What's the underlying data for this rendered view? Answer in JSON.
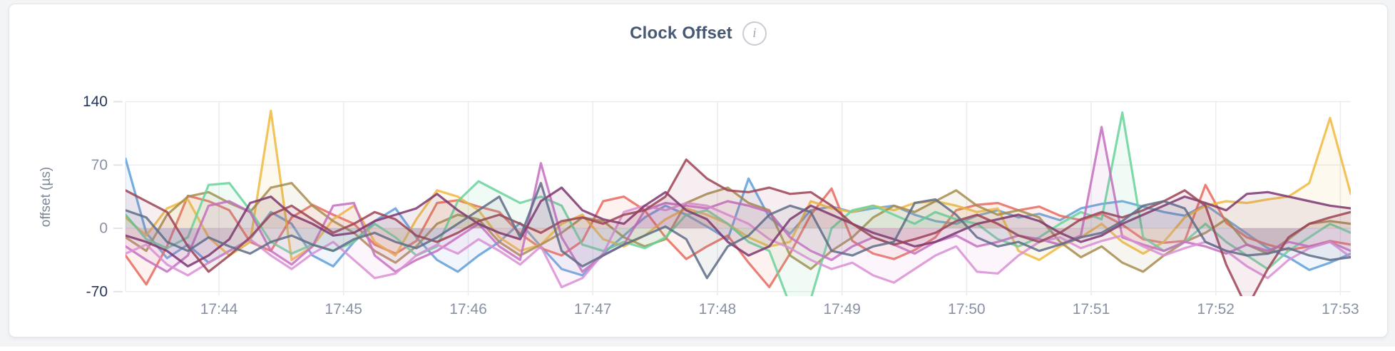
{
  "page": {
    "background": "#f3f4f6",
    "card_background": "#ffffff",
    "card_border": "#e3e5e9"
  },
  "header": {
    "title": "Clock Offset",
    "info_icon_glyph": "i"
  },
  "chart_data": {
    "type": "line",
    "title": "Clock Offset",
    "xlabel": "",
    "ylabel": "offset (µs)",
    "ylim": [
      -70,
      140
    ],
    "grid": true,
    "legend_position": "none",
    "fill_to_zero_baseline": true,
    "style": {
      "grid_color": "#ececee",
      "tick_label_color": "#8791a3",
      "tick_label_strong_color": "#26365a",
      "axis_title_color": "#7d8798",
      "title_color": "#475872",
      "info_icon_color": "#c8ccd3",
      "line_opacity": 0.85,
      "fill_opacity": 0.09
    },
    "y_ticks": [
      {
        "value": 140,
        "label": "140",
        "emphasis": true
      },
      {
        "value": 70,
        "label": "70",
        "emphasis": false
      },
      {
        "value": 0,
        "label": "0",
        "emphasis": false
      },
      {
        "value": -70,
        "label": "-70",
        "emphasis": true
      }
    ],
    "x_start": "17:43:15",
    "x_step_seconds": 10,
    "x_tick_labels": [
      "17:44",
      "17:45",
      "17:46",
      "17:47",
      "17:48",
      "17:49",
      "17:50",
      "17:51",
      "17:52",
      "17:53"
    ],
    "x_tick_start": "17:44:00",
    "x_tick_step_seconds": 60,
    "series": [
      {
        "name": "series-blue",
        "color": "#5f9fd9",
        "values": [
          77,
          -5,
          -33,
          -18,
          -38,
          -25,
          -12,
          18,
          5,
          -30,
          -42,
          -15,
          8,
          22,
          -10,
          -35,
          -48,
          -30,
          -15,
          6,
          -20,
          -45,
          -52,
          -28,
          -8,
          12,
          25,
          15,
          2,
          -12,
          55,
          12,
          -6,
          20,
          24,
          18,
          22,
          25,
          15,
          8,
          5,
          14,
          20,
          12,
          16,
          9,
          22,
          27,
          30,
          24,
          18,
          14,
          26,
          10,
          -6,
          -22,
          -32,
          -46,
          -38,
          -28
        ]
      },
      {
        "name": "series-salmon",
        "color": "#e86a5e",
        "values": [
          -30,
          -62,
          -20,
          36,
          30,
          20,
          -15,
          -25,
          12,
          26,
          15,
          5,
          -18,
          -28,
          -14,
          28,
          31,
          24,
          18,
          -6,
          -22,
          -30,
          -14,
          30,
          35,
          20,
          -10,
          -34,
          -20,
          -8,
          -38,
          -65,
          -28,
          15,
          44,
          -14,
          -28,
          -34,
          -24,
          -10,
          20,
          26,
          28,
          20,
          24,
          14,
          9,
          16,
          4,
          -12,
          -16,
          -14,
          48,
          6,
          -10,
          -18,
          -24,
          -20,
          -14,
          -18
        ]
      },
      {
        "name": "series-gold",
        "color": "#eeba3f",
        "values": [
          12,
          -8,
          22,
          32,
          -10,
          -30,
          -15,
          130,
          -35,
          -20,
          10,
          25,
          -15,
          -30,
          10,
          42,
          35,
          20,
          -10,
          -25,
          -18,
          5,
          15,
          -12,
          -20,
          -8,
          10,
          22,
          15,
          5,
          -10,
          -20,
          -15,
          30,
          22,
          18,
          25,
          20,
          28,
          30,
          25,
          18,
          22,
          -25,
          -35,
          -20,
          -10,
          5,
          -15,
          -28,
          -15,
          12,
          25,
          30,
          28,
          32,
          35,
          50,
          122,
          38
        ]
      },
      {
        "name": "series-olive",
        "color": "#a78c4e",
        "values": [
          -10,
          -25,
          15,
          35,
          40,
          28,
          18,
          45,
          50,
          25,
          8,
          -5,
          -25,
          -38,
          -20,
          5,
          15,
          10,
          -15,
          -30,
          -18,
          -5,
          12,
          8,
          -10,
          -20,
          -12,
          28,
          38,
          45,
          28,
          20,
          -30,
          -45,
          -25,
          -10,
          12,
          25,
          18,
          30,
          42,
          25,
          15,
          20,
          12,
          -15,
          -32,
          -20,
          -38,
          -48,
          -30,
          -15,
          -5,
          10,
          -18,
          -28,
          -12,
          5,
          8,
          5
        ]
      },
      {
        "name": "series-green",
        "color": "#68d29a",
        "values": [
          15,
          -12,
          -22,
          -10,
          48,
          50,
          20,
          -15,
          -28,
          -18,
          -25,
          -15,
          5,
          -10,
          -30,
          -20,
          30,
          52,
          40,
          28,
          35,
          25,
          -18,
          -25,
          -15,
          -22,
          -10,
          15,
          20,
          5,
          -15,
          -25,
          -85,
          -78,
          0,
          20,
          25,
          15,
          5,
          18,
          10,
          5,
          -12,
          -20,
          -10,
          5,
          18,
          10,
          128,
          -10,
          -25,
          -15,
          5,
          -15,
          -30,
          -45,
          -25,
          -10,
          5,
          -5
        ]
      },
      {
        "name": "series-orchid",
        "color": "#c46ec0",
        "values": [
          -20,
          -35,
          -48,
          -30,
          25,
          30,
          18,
          -25,
          -40,
          -20,
          25,
          28,
          -30,
          -48,
          -35,
          -25,
          -10,
          5,
          -20,
          -35,
          72,
          -10,
          -48,
          -30,
          -18,
          20,
          28,
          25,
          22,
          30,
          25,
          18,
          -10,
          -25,
          -35,
          -20,
          -10,
          -18,
          -28,
          -15,
          -8,
          -20,
          -15,
          -8,
          -12,
          -18,
          -8,
          112,
          -10,
          -18,
          -25,
          -15,
          -20,
          -28,
          -18,
          -25,
          -15,
          -20,
          -15,
          -25
        ]
      },
      {
        "name": "series-plum",
        "color": "#d98fd3",
        "values": [
          -28,
          -18,
          -40,
          -52,
          -38,
          -25,
          -12,
          -30,
          -45,
          -28,
          -15,
          -35,
          -55,
          -50,
          -30,
          -18,
          -28,
          -12,
          -25,
          -40,
          -20,
          -65,
          -55,
          -28,
          18,
          25,
          20,
          28,
          25,
          15,
          5,
          -12,
          -22,
          -35,
          -45,
          -38,
          -52,
          -60,
          -45,
          -30,
          -20,
          -48,
          -50,
          -30,
          -15,
          -10,
          -22,
          -14,
          -8,
          -20,
          -30,
          -22,
          -15,
          -25,
          -42,
          -55,
          -35,
          -22,
          -15,
          -32
        ]
      },
      {
        "name": "series-purple",
        "color": "#7c3670",
        "values": [
          -8,
          -15,
          -25,
          -42,
          -30,
          -12,
          28,
          35,
          15,
          5,
          -8,
          -5,
          8,
          15,
          22,
          38,
          20,
          5,
          -5,
          -12,
          30,
          45,
          20,
          10,
          5,
          25,
          40,
          20,
          10,
          -15,
          -30,
          -20,
          10,
          25,
          15,
          5,
          -5,
          -12,
          -20,
          -15,
          -5,
          5,
          10,
          15,
          8,
          -5,
          -15,
          -8,
          5,
          15,
          25,
          35,
          28,
          20,
          38,
          40,
          35,
          30,
          25,
          22
        ]
      },
      {
        "name": "series-maroon",
        "color": "#9c4355",
        "values": [
          42,
          30,
          18,
          -20,
          -48,
          -30,
          -10,
          15,
          25,
          10,
          -5,
          5,
          18,
          10,
          -8,
          -15,
          -5,
          8,
          15,
          5,
          -5,
          8,
          12,
          5,
          15,
          20,
          35,
          76,
          55,
          42,
          40,
          45,
          38,
          40,
          25,
          5,
          -10,
          -18,
          -12,
          -5,
          8,
          15,
          5,
          -8,
          -15,
          -5,
          10,
          18,
          12,
          20,
          30,
          42,
          25,
          -40,
          -88,
          -45,
          -10,
          5,
          12,
          18
        ]
      },
      {
        "name": "series-slate",
        "color": "#5f6c87",
        "values": [
          20,
          12,
          -15,
          -25,
          -10,
          -20,
          -28,
          -15,
          -8,
          -18,
          -25,
          -12,
          -5,
          -15,
          -22,
          -10,
          5,
          20,
          35,
          -10,
          50,
          -25,
          -42,
          -30,
          -18,
          -8,
          2,
          -12,
          -55,
          -20,
          -8,
          15,
          25,
          18,
          -25,
          -30,
          -20,
          -15,
          28,
          32,
          15,
          -10,
          -20,
          -15,
          -25,
          -18,
          -10,
          -5,
          8,
          25,
          30,
          22,
          -15,
          -25,
          -30,
          -28,
          -22,
          -30,
          -35,
          -32
        ]
      }
    ]
  }
}
